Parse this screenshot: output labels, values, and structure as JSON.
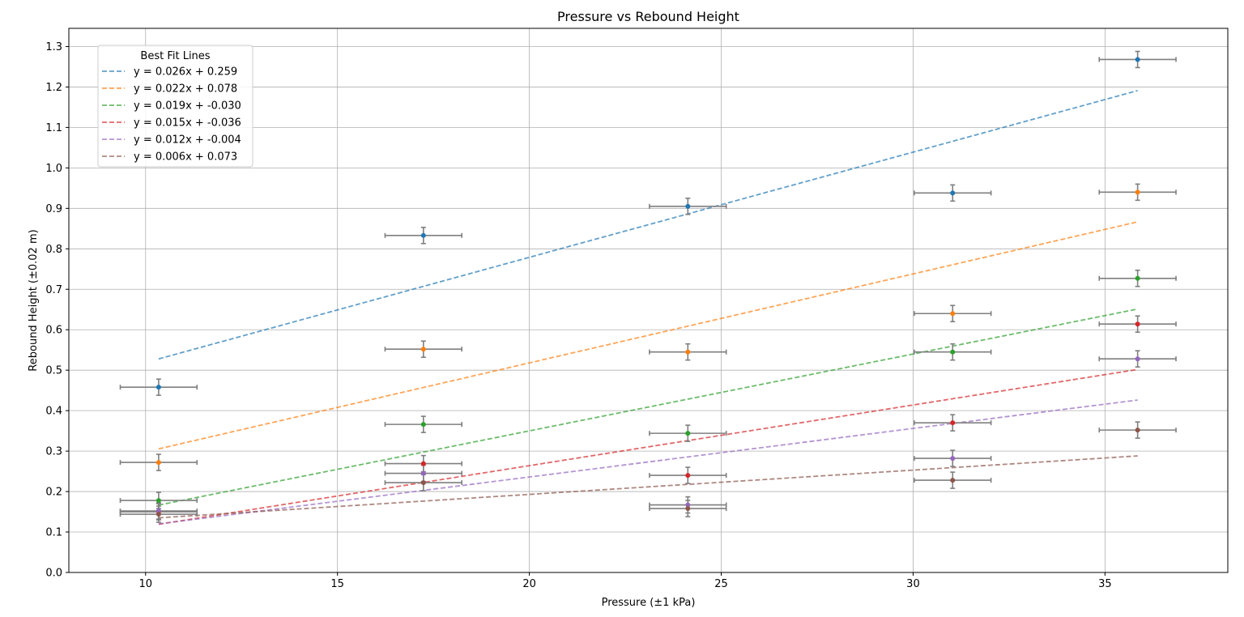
{
  "chart_data": {
    "type": "scatter",
    "title": "Pressure vs Rebound Height",
    "xlabel": "Pressure (±1 kPa)",
    "ylabel": "Rebound Height (±0.02 m)",
    "xlim": [
      8,
      38.2
    ],
    "ylim": [
      0,
      1.345
    ],
    "xticks": [
      10,
      15,
      20,
      25,
      30,
      35
    ],
    "yticks": [
      0.0,
      0.1,
      0.2,
      0.3,
      0.4,
      0.5,
      0.6,
      0.7,
      0.8,
      0.9,
      1.0,
      1.1,
      1.2,
      1.3
    ],
    "x_error": 1,
    "y_error": 0.02,
    "grid": true,
    "legend_title": "Best Fit Lines",
    "legend_position": "top-left",
    "x": [
      10.34,
      17.24,
      24.13,
      31.03,
      35.85
    ],
    "series": [
      {
        "color": "#1f77b4",
        "values": [
          0.458,
          0.833,
          0.905,
          0.938,
          1.268
        ],
        "fit_label": "y = 0.026x + 0.259",
        "fit": [
          0.026,
          0.259
        ]
      },
      {
        "color": "#ff7f0e",
        "values": [
          0.272,
          0.552,
          0.545,
          0.64,
          0.94
        ],
        "fit_label": "y = 0.022x + 0.078",
        "fit": [
          0.022,
          0.078
        ]
      },
      {
        "color": "#2ca02c",
        "values": [
          0.178,
          0.366,
          0.344,
          0.545,
          0.727
        ],
        "fit_label": "y = 0.019x + -0.030",
        "fit": [
          0.019,
          -0.03
        ]
      },
      {
        "color": "#d62728",
        "values": [
          0.15,
          0.269,
          0.24,
          0.37,
          0.614
        ],
        "fit_label": "y = 0.015x + -0.036",
        "fit": [
          0.015,
          -0.036
        ]
      },
      {
        "color": "#9467bd",
        "values": [
          0.152,
          0.245,
          0.167,
          0.282,
          0.528
        ],
        "fit_label": "y = 0.012x + -0.004",
        "fit": [
          0.012,
          -0.004
        ]
      },
      {
        "color": "#8c564b",
        "values": [
          0.144,
          0.222,
          0.158,
          0.228,
          0.352
        ],
        "fit_label": "y = 0.006x + 0.073",
        "fit": [
          0.006,
          0.073
        ]
      }
    ]
  }
}
